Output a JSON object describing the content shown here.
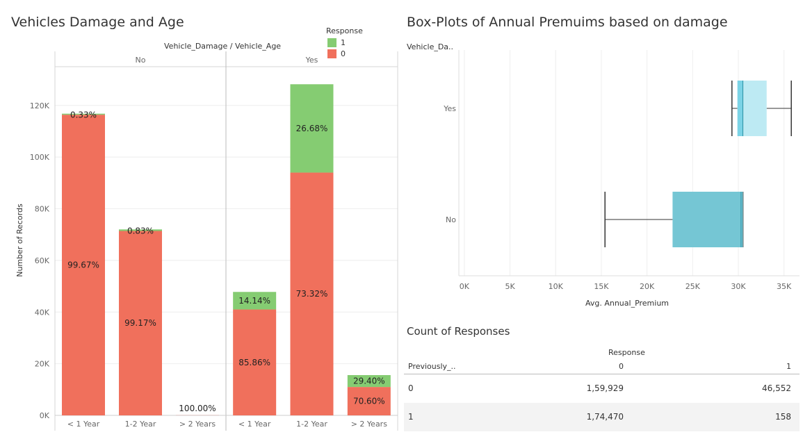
{
  "left_panel": {
    "title": "Vehicles Damage and Age",
    "column_header": "Vehicle_Damage / Vehicle_Age",
    "legend": {
      "title": "Response",
      "items": [
        {
          "label": "1",
          "color": "#85cc72"
        },
        {
          "label": "0",
          "color": "#f0705c"
        }
      ]
    }
  },
  "right_panel": {
    "title": "Box-Plots of Annual Premuims based on damage",
    "row_header": "Vehicle_Da.."
  },
  "table": {
    "title": "Count of Responses",
    "column_group_header": "Response",
    "row_header": "Previously_..",
    "columns": [
      "0",
      "1"
    ],
    "rows": [
      {
        "key": "0",
        "values": [
          "1,59,929",
          "46,552"
        ]
      },
      {
        "key": "1",
        "values": [
          "1,74,470",
          "158"
        ]
      }
    ]
  },
  "chart_data": [
    {
      "type": "bar",
      "stacked": true,
      "ylabel": "Number of Records",
      "ylim": [
        0,
        135000
      ],
      "yticks": [
        0,
        20000,
        40000,
        60000,
        80000,
        100000,
        120000
      ],
      "ytick_labels": [
        "0K",
        "20K",
        "40K",
        "60K",
        "80K",
        "100K",
        "120K"
      ],
      "grid": true,
      "panes": [
        "No",
        "Yes"
      ],
      "categories": [
        "< 1 Year",
        "1-2 Year",
        "> 2 Years"
      ],
      "series": [
        {
          "name": "0",
          "color": "#f0705c",
          "values": {
            "No": [
              116400,
              71400,
              50
            ],
            "Yes": [
              41000,
              94000,
              11000
            ]
          },
          "labels": {
            "No": [
              "99.67%",
              "99.17%",
              "100.00%"
            ],
            "Yes": [
              "85.86%",
              "73.32%",
              "70.60%"
            ]
          }
        },
        {
          "name": "1",
          "color": "#85cc72",
          "values": {
            "No": [
              400,
              600,
              0
            ],
            "Yes": [
              6800,
              34200,
              4600
            ]
          },
          "labels": {
            "No": [
              "0.33%",
              "0.83%",
              ""
            ],
            "Yes": [
              "14.14%",
              "26.68%",
              "29.40%"
            ]
          }
        }
      ]
    },
    {
      "type": "box",
      "xlabel": "Avg. Annual_Premium",
      "xlim": [
        -600,
        36700
      ],
      "xticks": [
        0,
        5000,
        10000,
        15000,
        20000,
        25000,
        30000,
        35000
      ],
      "xtick_labels": [
        "0K",
        "5K",
        "10K",
        "15K",
        "20K",
        "25K",
        "30K",
        "35K"
      ],
      "grid": true,
      "categories": [
        "Yes",
        "No"
      ],
      "boxes": [
        {
          "category": "Yes",
          "whisker_low": 29300,
          "q1": 29900,
          "median": 30500,
          "q3": 33100,
          "whisker_high": 35800,
          "color": "#bdeaf3",
          "lower_color": "#7ad3e6"
        },
        {
          "category": "No",
          "whisker_low": 15400,
          "q1": 22800,
          "median": 30300,
          "q3": 30500,
          "whisker_high": 30500,
          "color": "#75c6d4",
          "lower_color": "#75c6d4"
        }
      ]
    }
  ]
}
